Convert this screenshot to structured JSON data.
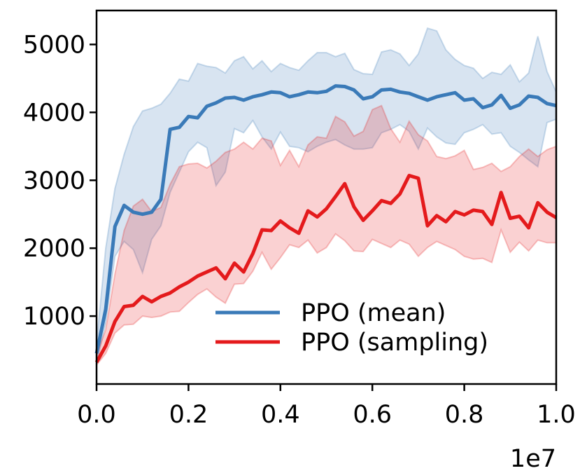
{
  "chart_data": {
    "type": "line",
    "title": "",
    "xlabel": "",
    "ylabel": "",
    "x_offset_text": "1e7",
    "xlim": [
      0.0,
      1.0
    ],
    "ylim": [
      0,
      5500
    ],
    "xticks": [
      0.0,
      0.2,
      0.4,
      0.6,
      0.8,
      1.0
    ],
    "xtick_labels": [
      "0.0",
      "0.2",
      "0.4",
      "0.6",
      "0.8",
      "1.0"
    ],
    "yticks": [
      1000,
      2000,
      3000,
      4000,
      5000
    ],
    "ytick_labels": [
      "1000",
      "2000",
      "3000",
      "4000",
      "5000"
    ],
    "grid": false,
    "legend_position": "lower-right",
    "x": [
      0.0,
      0.02,
      0.04,
      0.06,
      0.08,
      0.1,
      0.12,
      0.14,
      0.16,
      0.18,
      0.2,
      0.22,
      0.24,
      0.26,
      0.28,
      0.3,
      0.32,
      0.34,
      0.36,
      0.38,
      0.4,
      0.42,
      0.44,
      0.46,
      0.48,
      0.5,
      0.52,
      0.54,
      0.56,
      0.58,
      0.6,
      0.62,
      0.64,
      0.66,
      0.68,
      0.7,
      0.72,
      0.74,
      0.76,
      0.78,
      0.8,
      0.82,
      0.84,
      0.86,
      0.88,
      0.9,
      0.92,
      0.94,
      0.96,
      0.98,
      1.0
    ],
    "series": [
      {
        "name": "PPO (mean)",
        "color": "#3a7ab8",
        "values": [
          450,
          1100,
          2320,
          2630,
          2530,
          2500,
          2530,
          2720,
          3750,
          3780,
          3940,
          3920,
          4090,
          4140,
          4210,
          4220,
          4180,
          4230,
          4260,
          4300,
          4290,
          4230,
          4260,
          4300,
          4290,
          4310,
          4390,
          4380,
          4330,
          4200,
          4230,
          4330,
          4340,
          4300,
          4280,
          4230,
          4180,
          4230,
          4260,
          4290,
          4180,
          4200,
          4070,
          4110,
          4250,
          4060,
          4110,
          4240,
          4220,
          4130,
          4100
        ],
        "band_upper": [
          600,
          2000,
          2880,
          3380,
          3790,
          4020,
          4060,
          4120,
          4280,
          4490,
          4460,
          4720,
          4680,
          4660,
          4580,
          4760,
          4820,
          4640,
          4760,
          4600,
          4720,
          4660,
          4620,
          4760,
          4880,
          4880,
          4820,
          4870,
          4630,
          4570,
          4560,
          4890,
          4920,
          4860,
          4690,
          4860,
          5240,
          5200,
          4920,
          4780,
          4690,
          4650,
          4500,
          4590,
          4560,
          4700,
          4450,
          4580,
          5120,
          4600,
          4300
        ],
        "band_lower": [
          300,
          900,
          1880,
          2100,
          1980,
          1640,
          2130,
          2330,
          2820,
          3120,
          3420,
          3560,
          3480,
          2920,
          3120,
          3760,
          3700,
          3880,
          3640,
          3460,
          3710,
          3500,
          3480,
          3420,
          3500,
          3560,
          3600,
          3520,
          3460,
          3460,
          3480,
          3700,
          3750,
          3820,
          3720,
          3460,
          3770,
          3640,
          3550,
          3530,
          3700,
          3750,
          3820,
          3680,
          3700,
          3500,
          3410,
          3300,
          3200,
          3850,
          3900
        ]
      },
      {
        "name": "PPO (sampling)",
        "color": "#e41a1c",
        "values": [
          320,
          560,
          920,
          1140,
          1160,
          1290,
          1210,
          1290,
          1340,
          1430,
          1500,
          1590,
          1650,
          1710,
          1550,
          1780,
          1650,
          1920,
          2270,
          2260,
          2400,
          2300,
          2220,
          2550,
          2460,
          2580,
          2760,
          2950,
          2610,
          2410,
          2550,
          2700,
          2660,
          2800,
          3070,
          3030,
          2330,
          2480,
          2390,
          2540,
          2490,
          2560,
          2540,
          2350,
          2820,
          2440,
          2470,
          2300,
          2670,
          2530,
          2450
        ],
        "band_upper": [
          420,
          800,
          1620,
          2260,
          2620,
          2720,
          2540,
          2600,
          2940,
          3200,
          3240,
          3250,
          3180,
          3280,
          3410,
          3460,
          3560,
          3460,
          3620,
          3580,
          3220,
          3440,
          3200,
          3520,
          3640,
          3620,
          3940,
          3860,
          3650,
          3720,
          4040,
          4100,
          3760,
          3560,
          3870,
          3670,
          3580,
          3350,
          3320,
          3360,
          3440,
          3160,
          3190,
          3250,
          3130,
          3200,
          3350,
          3460,
          3350,
          3450,
          3500
        ],
        "band_lower": [
          280,
          450,
          750,
          870,
          880,
          1000,
          980,
          1000,
          1060,
          1070,
          1200,
          1320,
          1400,
          1280,
          1190,
          1470,
          1480,
          1660,
          1940,
          1690,
          1860,
          2050,
          2010,
          2120,
          1930,
          2010,
          2210,
          2110,
          1960,
          1950,
          2130,
          2070,
          2010,
          2120,
          2060,
          1880,
          2010,
          2100,
          2040,
          1980,
          1880,
          1840,
          1850,
          1790,
          2270,
          1940,
          2090,
          1960,
          2120,
          2080,
          2080
        ]
      }
    ]
  }
}
